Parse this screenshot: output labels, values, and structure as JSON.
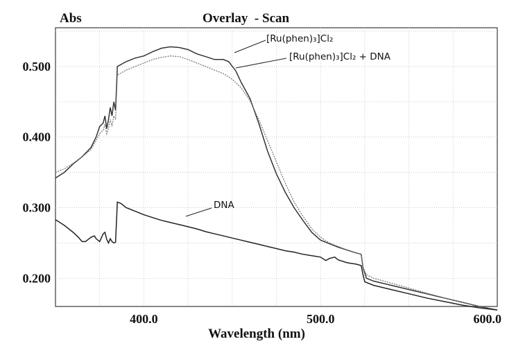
{
  "chart_data": {
    "type": "line",
    "title": "Overlay  - Scan",
    "ylabel": "Abs",
    "xlabel": "Wavelength (nm)",
    "xlim": [
      350,
      600
    ],
    "ylim": [
      0.16,
      0.555
    ],
    "x_ticks": [
      {
        "value": 400,
        "label": "400.0"
      },
      {
        "value": 500,
        "label": "500.0"
      },
      {
        "value": 600,
        "label": "600.0"
      }
    ],
    "y_ticks": [
      {
        "value": 0.2,
        "label": "0.200"
      },
      {
        "value": 0.3,
        "label": "0.300"
      },
      {
        "value": 0.4,
        "label": "0.400"
      },
      {
        "value": 0.5,
        "label": "0.500"
      }
    ],
    "grid": true,
    "series": [
      {
        "name": "[Ru(phen)₃]Cl₂",
        "color": "#333333",
        "dashed": false,
        "points": [
          [
            350,
            0.342
          ],
          [
            355,
            0.35
          ],
          [
            360,
            0.362
          ],
          [
            365,
            0.372
          ],
          [
            370,
            0.385
          ],
          [
            373,
            0.4
          ],
          [
            375,
            0.415
          ],
          [
            377,
            0.42
          ],
          [
            378,
            0.43
          ],
          [
            379,
            0.412
          ],
          [
            380,
            0.425
          ],
          [
            381,
            0.442
          ],
          [
            382,
            0.43
          ],
          [
            383,
            0.45
          ],
          [
            384,
            0.438
          ],
          [
            385,
            0.5
          ],
          [
            390,
            0.507
          ],
          [
            395,
            0.512
          ],
          [
            400,
            0.515
          ],
          [
            405,
            0.521
          ],
          [
            410,
            0.526
          ],
          [
            415,
            0.528
          ],
          [
            420,
            0.527
          ],
          [
            425,
            0.524
          ],
          [
            430,
            0.518
          ],
          [
            435,
            0.514
          ],
          [
            440,
            0.51
          ],
          [
            445,
            0.51
          ],
          [
            448,
            0.507
          ],
          [
            452,
            0.494
          ],
          [
            455,
            0.478
          ],
          [
            460,
            0.455
          ],
          [
            465,
            0.42
          ],
          [
            470,
            0.38
          ],
          [
            475,
            0.348
          ],
          [
            480,
            0.322
          ],
          [
            485,
            0.3
          ],
          [
            490,
            0.282
          ],
          [
            495,
            0.265
          ],
          [
            500,
            0.254
          ],
          [
            505,
            0.249
          ],
          [
            510,
            0.244
          ],
          [
            515,
            0.24
          ],
          [
            520,
            0.236
          ],
          [
            523,
            0.234
          ],
          [
            524,
            0.215
          ],
          [
            526,
            0.2
          ],
          [
            530,
            0.196
          ],
          [
            540,
            0.19
          ],
          [
            550,
            0.184
          ],
          [
            560,
            0.178
          ],
          [
            570,
            0.172
          ],
          [
            580,
            0.166
          ],
          [
            590,
            0.16
          ],
          [
            600,
            0.155
          ]
        ]
      },
      {
        "name": "[Ru(phen)₃]Cl₂ + DNA",
        "color": "#7a7a7a",
        "dashed": true,
        "points": [
          [
            350,
            0.35
          ],
          [
            355,
            0.355
          ],
          [
            360,
            0.363
          ],
          [
            365,
            0.372
          ],
          [
            370,
            0.382
          ],
          [
            373,
            0.395
          ],
          [
            375,
            0.405
          ],
          [
            377,
            0.41
          ],
          [
            378,
            0.418
          ],
          [
            379,
            0.405
          ],
          [
            380,
            0.412
          ],
          [
            381,
            0.425
          ],
          [
            382,
            0.415
          ],
          [
            383,
            0.43
          ],
          [
            384,
            0.425
          ],
          [
            385,
            0.488
          ],
          [
            390,
            0.495
          ],
          [
            395,
            0.5
          ],
          [
            400,
            0.505
          ],
          [
            405,
            0.51
          ],
          [
            410,
            0.513
          ],
          [
            415,
            0.515
          ],
          [
            420,
            0.514
          ],
          [
            425,
            0.51
          ],
          [
            430,
            0.505
          ],
          [
            435,
            0.5
          ],
          [
            440,
            0.495
          ],
          [
            445,
            0.49
          ],
          [
            450,
            0.482
          ],
          [
            455,
            0.47
          ],
          [
            460,
            0.452
          ],
          [
            465,
            0.425
          ],
          [
            470,
            0.395
          ],
          [
            475,
            0.365
          ],
          [
            480,
            0.335
          ],
          [
            485,
            0.308
          ],
          [
            490,
            0.288
          ],
          [
            495,
            0.27
          ],
          [
            500,
            0.258
          ],
          [
            505,
            0.25
          ],
          [
            510,
            0.245
          ],
          [
            515,
            0.24
          ],
          [
            520,
            0.236
          ],
          [
            523,
            0.234
          ],
          [
            524,
            0.215
          ],
          [
            526,
            0.205
          ],
          [
            530,
            0.2
          ],
          [
            540,
            0.193
          ],
          [
            550,
            0.186
          ],
          [
            560,
            0.179
          ],
          [
            570,
            0.172
          ],
          [
            580,
            0.166
          ],
          [
            590,
            0.16
          ],
          [
            600,
            0.155
          ]
        ]
      },
      {
        "name": "DNA",
        "color": "#222222",
        "dashed": false,
        "points": [
          [
            350,
            0.283
          ],
          [
            355,
            0.275
          ],
          [
            360,
            0.265
          ],
          [
            363,
            0.258
          ],
          [
            365,
            0.252
          ],
          [
            367,
            0.252
          ],
          [
            370,
            0.258
          ],
          [
            372,
            0.26
          ],
          [
            373,
            0.256
          ],
          [
            375,
            0.252
          ],
          [
            377,
            0.263
          ],
          [
            378,
            0.265
          ],
          [
            379,
            0.255
          ],
          [
            380,
            0.25
          ],
          [
            381,
            0.256
          ],
          [
            382,
            0.252
          ],
          [
            383,
            0.25
          ],
          [
            384,
            0.251
          ],
          [
            385,
            0.308
          ],
          [
            387,
            0.306
          ],
          [
            390,
            0.3
          ],
          [
            395,
            0.295
          ],
          [
            400,
            0.29
          ],
          [
            405,
            0.286
          ],
          [
            410,
            0.282
          ],
          [
            415,
            0.279
          ],
          [
            420,
            0.276
          ],
          [
            425,
            0.273
          ],
          [
            430,
            0.27
          ],
          [
            435,
            0.266
          ],
          [
            440,
            0.263
          ],
          [
            445,
            0.26
          ],
          [
            450,
            0.257
          ],
          [
            455,
            0.254
          ],
          [
            460,
            0.251
          ],
          [
            465,
            0.248
          ],
          [
            470,
            0.245
          ],
          [
            475,
            0.242
          ],
          [
            480,
            0.239
          ],
          [
            485,
            0.237
          ],
          [
            490,
            0.234
          ],
          [
            495,
            0.232
          ],
          [
            500,
            0.23
          ],
          [
            503,
            0.225
          ],
          [
            505,
            0.228
          ],
          [
            508,
            0.23
          ],
          [
            510,
            0.226
          ],
          [
            515,
            0.222
          ],
          [
            520,
            0.22
          ],
          [
            523,
            0.218
          ],
          [
            524,
            0.205
          ],
          [
            525,
            0.195
          ],
          [
            530,
            0.19
          ],
          [
            540,
            0.184
          ],
          [
            550,
            0.178
          ],
          [
            560,
            0.172
          ],
          [
            570,
            0.167
          ],
          [
            580,
            0.162
          ],
          [
            590,
            0.158
          ],
          [
            600,
            0.155
          ]
        ]
      }
    ],
    "annotations": [
      {
        "text": "[Ru(phen)₃]Cl₂",
        "target_series": 0
      },
      {
        "text": "[Ru(phen)₃]Cl₂ + DNA",
        "target_series": 1
      },
      {
        "text": "DNA",
        "target_series": 2
      }
    ]
  },
  "colors": {
    "frame": "#555555",
    "grid": "#b8b8b8",
    "text": "#111111"
  }
}
